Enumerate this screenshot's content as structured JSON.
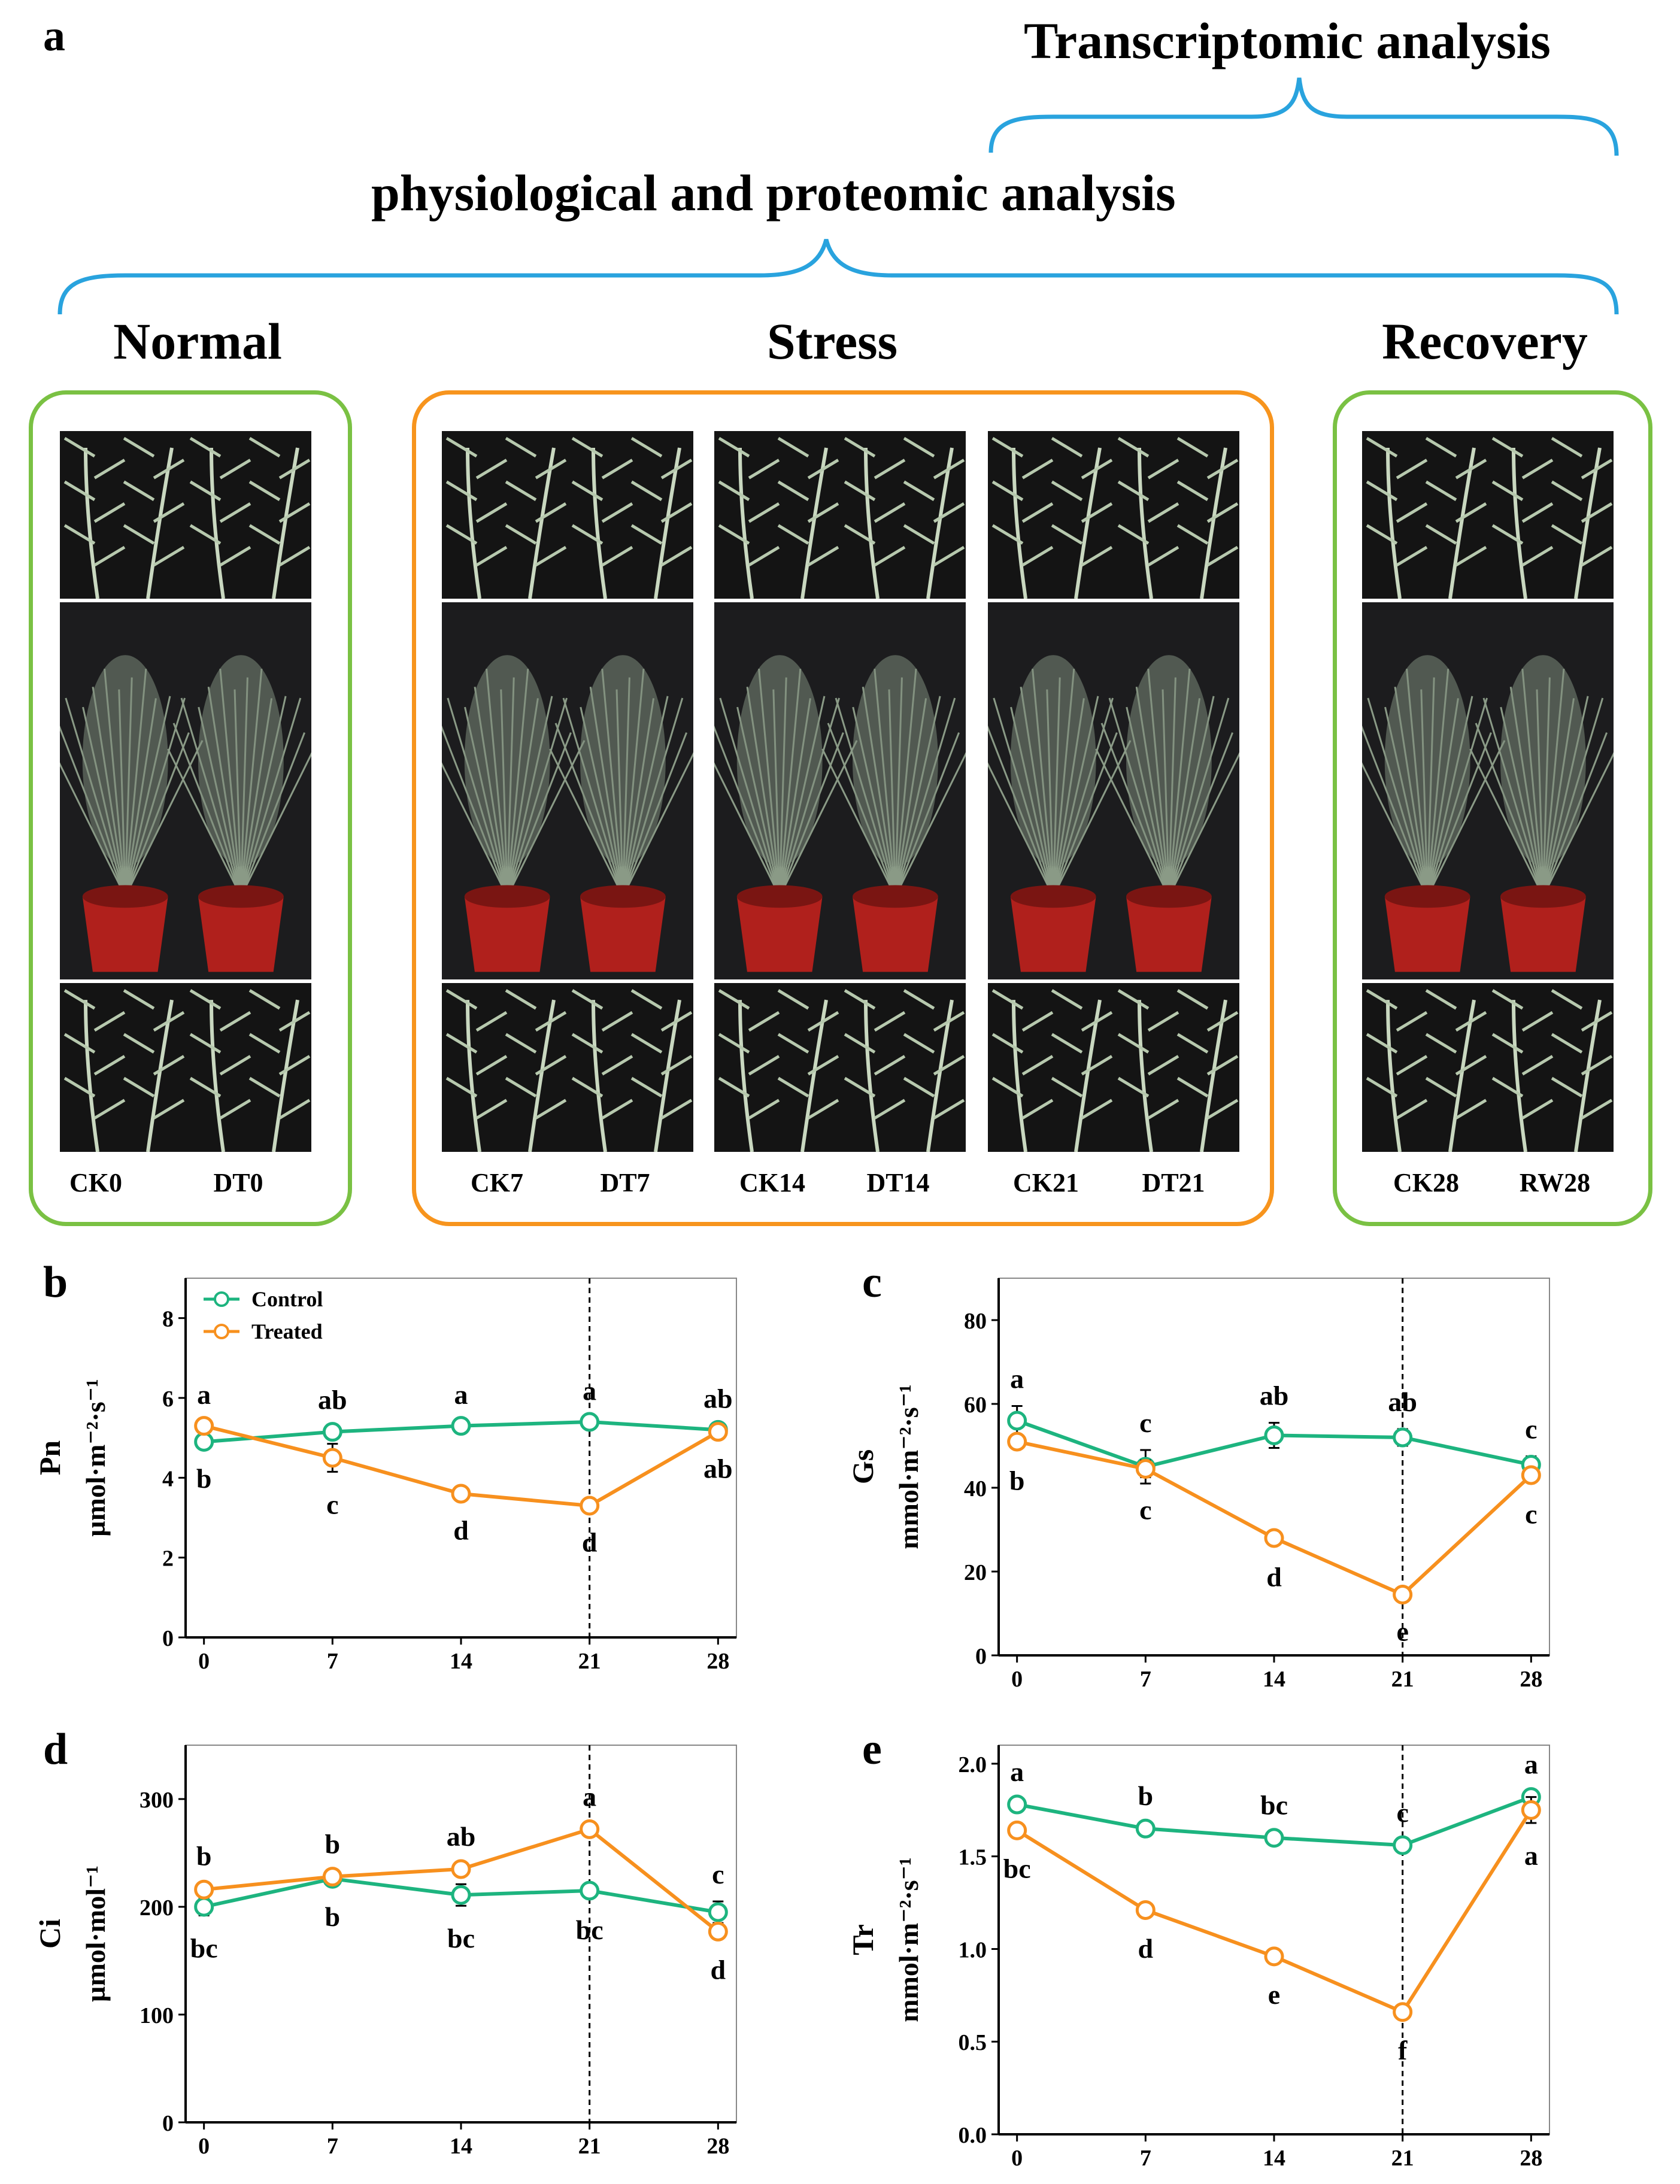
{
  "panel_a": {
    "label": "a",
    "title_transcriptomic": "Transcriptomic analysis",
    "title_physio": "physiological and proteomic analysis",
    "phases": {
      "normal": "Normal",
      "stress": "Stress",
      "recovery": "Recovery"
    },
    "samples": {
      "normal": [
        "CK0",
        "DT0"
      ],
      "stress": [
        "CK7",
        "DT7",
        "CK14",
        "DT14",
        "CK21",
        "DT21"
      ],
      "recovery": [
        "CK28",
        "RW28"
      ]
    },
    "colors": {
      "normal_box": "#7ac143",
      "stress_box": "#f7941d",
      "bracket": "#29a3de",
      "pot": "#b0201c"
    }
  },
  "legend": {
    "control": "Control",
    "treated": "Treated"
  },
  "series_colors": {
    "control": "#1db47f",
    "treated": "#f7901e"
  },
  "chart_data": [
    {
      "id": "b",
      "type": "line",
      "label": "b",
      "y_abbrev": "Pn",
      "ylabel": "µmol·m⁻²·s⁻¹",
      "x": [
        0,
        7,
        14,
        21,
        28
      ],
      "xticks": [
        "0",
        "7",
        "14",
        "21",
        "28"
      ],
      "ylim": [
        0,
        9
      ],
      "yticks": [
        "0",
        "2",
        "4",
        "6",
        "8"
      ],
      "ytick_values": [
        0,
        2,
        4,
        6,
        8
      ],
      "vline": 21,
      "series": [
        {
          "name": "Control",
          "values": [
            4.9,
            5.15,
            5.3,
            5.4,
            5.2
          ],
          "err": [
            0.1,
            0.12,
            0.1,
            0.1,
            0.1
          ],
          "letters": [
            "b",
            "ab",
            "a",
            "a",
            "ab"
          ]
        },
        {
          "name": "Treated",
          "values": [
            5.3,
            4.5,
            3.6,
            3.3,
            5.15
          ],
          "err": [
            0.1,
            0.35,
            0.1,
            0.1,
            0.1
          ],
          "letters": [
            "a",
            "c",
            "d",
            "d",
            "ab"
          ]
        }
      ]
    },
    {
      "id": "c",
      "type": "line",
      "label": "c",
      "y_abbrev": "Gs",
      "ylabel": "mmol·m⁻²·s⁻¹",
      "x": [
        0,
        7,
        14,
        21,
        28
      ],
      "xticks": [
        "0",
        "7",
        "14",
        "21",
        "28"
      ],
      "ylim": [
        0,
        90
      ],
      "yticks": [
        "0",
        "20",
        "40",
        "60",
        "80"
      ],
      "ytick_values": [
        0,
        20,
        40,
        60,
        80
      ],
      "vline": 21,
      "series": [
        {
          "name": "Control",
          "values": [
            56,
            45,
            52.5,
            52,
            45.5
          ],
          "err": [
            3.5,
            4,
            3,
            2,
            2
          ],
          "letters": [
            "a",
            "c",
            "ab",
            "ab",
            "c"
          ]
        },
        {
          "name": "Treated",
          "values": [
            51,
            44.5,
            28,
            14.5,
            43
          ],
          "err": [
            1.5,
            2,
            1.5,
            1,
            1.5
          ],
          "letters": [
            "b",
            "c",
            "d",
            "e",
            "c"
          ]
        }
      ]
    },
    {
      "id": "d",
      "type": "line",
      "label": "d",
      "y_abbrev": "Ci",
      "ylabel": "µmol·mol⁻¹",
      "x": [
        0,
        7,
        14,
        21,
        28
      ],
      "xticks": [
        "0",
        "7",
        "14",
        "21",
        "28"
      ],
      "ylim": [
        0,
        350
      ],
      "yticks": [
        "0",
        "100",
        "200",
        "300"
      ],
      "ytick_values": [
        0,
        100,
        200,
        300
      ],
      "vline": 21,
      "series": [
        {
          "name": "Control",
          "values": [
            200,
            226,
            211,
            215,
            195
          ],
          "err": [
            8,
            5,
            10,
            6,
            10
          ],
          "letters": [
            "bc",
            "b",
            "bc",
            "bc",
            "c"
          ]
        },
        {
          "name": "Treated",
          "values": [
            216,
            228,
            235,
            272,
            177
          ],
          "err": [
            6,
            5,
            5,
            5,
            5
          ],
          "letters": [
            "b",
            "b",
            "ab",
            "a",
            "d"
          ]
        }
      ]
    },
    {
      "id": "e",
      "type": "line",
      "label": "e",
      "y_abbrev": "Tr",
      "ylabel": "mmol·m⁻²·s⁻¹",
      "x": [
        0,
        7,
        14,
        21,
        28
      ],
      "xticks": [
        "0",
        "7",
        "14",
        "21",
        "28"
      ],
      "ylim": [
        0,
        2.1
      ],
      "yticks": [
        "0.0",
        "0.5",
        "1.0",
        "1.5",
        "2.0"
      ],
      "ytick_values": [
        0,
        0.5,
        1.0,
        1.5,
        2.0
      ],
      "vline": 21,
      "series": [
        {
          "name": "Control",
          "values": [
            1.78,
            1.65,
            1.6,
            1.56,
            1.82
          ],
          "err": [
            0.03,
            0.03,
            0.03,
            0.03,
            0.03
          ],
          "letters": [
            "a",
            "b",
            "bc",
            "c",
            "a"
          ]
        },
        {
          "name": "Treated",
          "values": [
            1.64,
            1.21,
            0.96,
            0.66,
            1.75
          ],
          "err": [
            0.03,
            0.03,
            0.03,
            0.03,
            0.07
          ],
          "letters": [
            "bc",
            "d",
            "e",
            "f",
            "a"
          ]
        }
      ]
    }
  ]
}
